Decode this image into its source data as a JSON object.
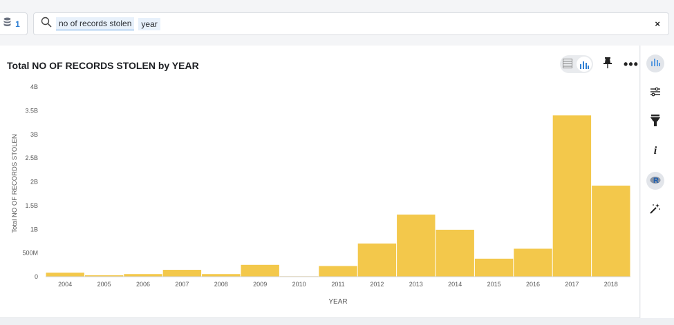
{
  "search": {
    "datasource_count": "1",
    "tokens": [
      "no of records stolen",
      "year"
    ],
    "clear_label": "×"
  },
  "card": {
    "title": "Total NO OF RECORDS STOLEN by YEAR",
    "more_label": "•••"
  },
  "rail": {
    "items": [
      "chart-icon",
      "settings-sliders-icon",
      "filter-icon",
      "info-icon",
      "r-analysis-icon",
      "magic-wand-icon"
    ],
    "info_label": "i",
    "r_label": "R"
  },
  "colors": {
    "bar": "#f3c84b",
    "accent": "#2f7fd3",
    "axis_text": "#555555"
  },
  "chart_data": {
    "type": "bar",
    "title": "Total NO OF RECORDS STOLEN by YEAR",
    "xlabel": "YEAR",
    "ylabel": "Total NO OF RECORDS STOLEN",
    "categories": [
      "2004",
      "2005",
      "2006",
      "2007",
      "2008",
      "2009",
      "2010",
      "2011",
      "2012",
      "2013",
      "2014",
      "2015",
      "2016",
      "2017",
      "2018"
    ],
    "values": [
      85000000,
      30000000,
      55000000,
      145000000,
      55000000,
      250000000,
      10000000,
      225000000,
      700000000,
      1310000000,
      990000000,
      380000000,
      590000000,
      3400000000,
      1920000000
    ],
    "yticks": [
      "0",
      "500M",
      "1B",
      "1.5B",
      "2B",
      "2.5B",
      "3B",
      "3.5B",
      "4B"
    ],
    "ylim": [
      0,
      4000000000
    ],
    "grid": false
  }
}
